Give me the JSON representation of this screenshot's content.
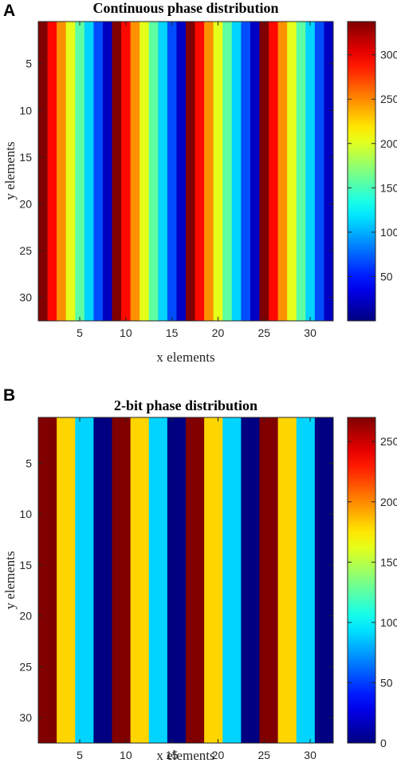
{
  "chart_data": [
    {
      "panel": "A",
      "type": "heatmap",
      "title": "Continuous phase distribution",
      "xlabel": "x elements",
      "ylabel": "y elements",
      "xlim": [
        0.5,
        32.5
      ],
      "ylim": [
        0.5,
        32.5
      ],
      "xticks": [
        5,
        10,
        15,
        20,
        25,
        30
      ],
      "yticks": [
        5,
        10,
        15,
        20,
        25,
        30
      ],
      "colormap": "jet",
      "color_range": [
        0,
        337.5
      ],
      "colorbar_ticks": [
        50,
        100,
        150,
        200,
        250,
        300
      ],
      "rows": 32,
      "column_values": [
        337.5,
        292.5,
        247.5,
        202.5,
        157.5,
        112.5,
        67.5,
        22.5,
        337.5,
        292.5,
        247.5,
        202.5,
        157.5,
        112.5,
        67.5,
        22.5,
        337.5,
        292.5,
        247.5,
        202.5,
        157.5,
        112.5,
        67.5,
        22.5,
        337.5,
        292.5,
        247.5,
        202.5,
        157.5,
        112.5,
        67.5,
        22.5
      ]
    },
    {
      "panel": "B",
      "type": "heatmap",
      "title": "2-bit phase distribution",
      "xlabel": "x elements",
      "ylabel": "y elements",
      "xlim": [
        0.5,
        32.5
      ],
      "ylim": [
        0.5,
        32.5
      ],
      "xticks": [
        5,
        10,
        15,
        20,
        25,
        30
      ],
      "yticks": [
        5,
        10,
        15,
        20,
        25,
        30
      ],
      "colormap": "jet",
      "color_range": [
        0,
        270
      ],
      "colorbar_ticks": [
        0,
        50,
        100,
        150,
        200,
        250
      ],
      "rows": 32,
      "column_values": [
        270,
        270,
        180,
        180,
        90,
        90,
        0,
        0,
        270,
        270,
        180,
        180,
        90,
        90,
        0,
        0,
        270,
        270,
        180,
        180,
        90,
        90,
        0,
        0,
        270,
        270,
        180,
        180,
        90,
        90,
        0,
        0
      ]
    }
  ]
}
